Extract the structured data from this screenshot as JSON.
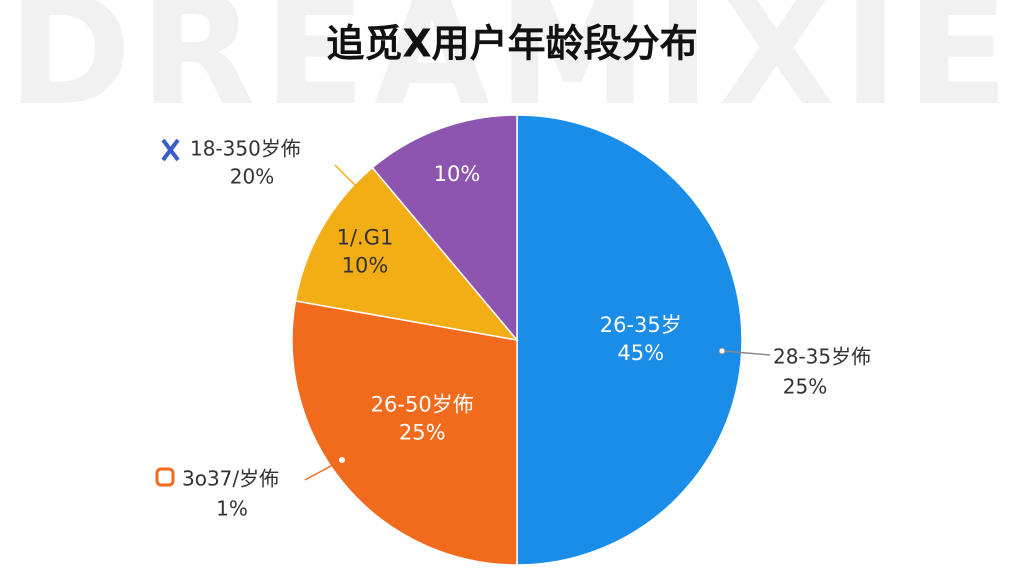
{
  "chart_data": {
    "type": "pie",
    "title": "追觅X用户年龄段分布",
    "watermark": "DREAMIXIE",
    "categories": [
      "26-35岁",
      "26-50岁佈",
      "1/.G1",
      null
    ],
    "values": [
      45,
      25,
      10,
      10
    ],
    "value_labels": [
      "45%",
      "25%",
      "10%",
      "10%"
    ],
    "colors": [
      "#1a8de8",
      "#f26a1b",
      "#f3ae16",
      "#8e55b0"
    ],
    "annotations": [
      {
        "label": "18-350岁佈",
        "sublabel": "20%"
      },
      {
        "label": "28-35岁佈",
        "sublabel": "25%"
      },
      {
        "label": "3o37/岁佈",
        "sublabel": "1%"
      }
    ]
  }
}
